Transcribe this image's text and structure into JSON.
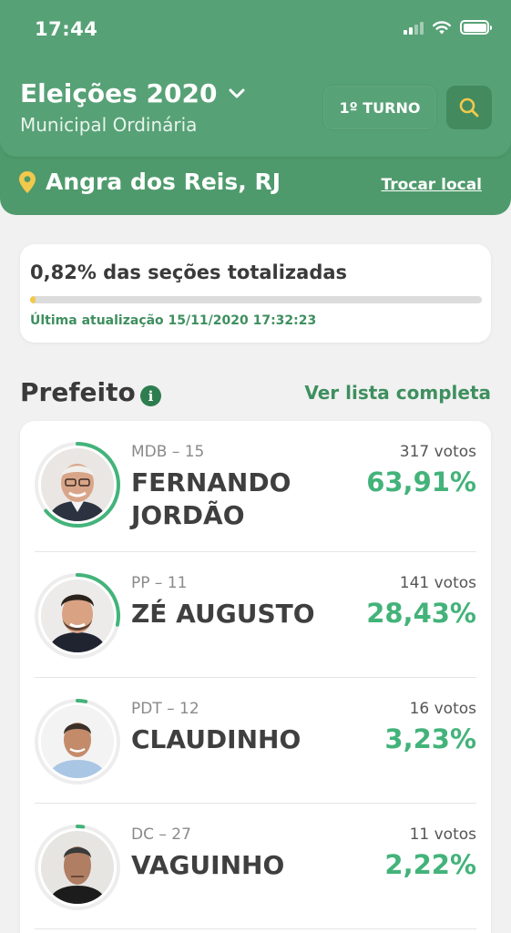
{
  "status_bar": {
    "time": "17:44"
  },
  "header": {
    "title": "Eleições 2020",
    "subtitle": "Municipal Ordinária",
    "turno_label": "1º TURNO",
    "location": "Angra dos Reis, RJ",
    "change_location_label": "Trocar local"
  },
  "progress": {
    "title": "0,82% das seções totalizadas",
    "fraction": 0.0082,
    "last_update": "Última atualização 15/11/2020 17:32:23"
  },
  "section": {
    "title": "Prefeito",
    "see_all_label": "Ver lista completa"
  },
  "candidates": [
    {
      "party": "MDB – 15",
      "name": "FERNANDO JORDÃO",
      "votes": "317 votos",
      "percent": "63,91%",
      "share": 0.6391
    },
    {
      "party": "PP – 11",
      "name": "ZÉ AUGUSTO",
      "votes": "141 votos",
      "percent": "28,43%",
      "share": 0.2843
    },
    {
      "party": "PDT – 12",
      "name": "CLAUDINHO",
      "votes": "16 votos",
      "percent": "3,23%",
      "share": 0.0323
    },
    {
      "party": "DC – 27",
      "name": "VAGUINHO",
      "votes": "11 votos",
      "percent": "2,22%",
      "share": 0.0222
    }
  ],
  "colors": {
    "header_green": "#57a176",
    "accent_green": "#43b37a",
    "link_green": "#3e8f5f",
    "progress_yellow": "#f2c94c",
    "search_icon": "#f2c94c"
  }
}
